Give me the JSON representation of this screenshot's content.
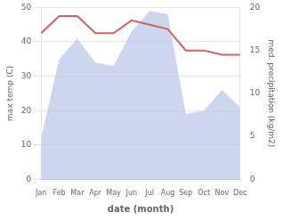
{
  "chart_data": {
    "type": "line",
    "categories": [
      "Jan",
      "Feb",
      "Mar",
      "Apr",
      "May",
      "Jun",
      "Jul",
      "Aug",
      "Sep",
      "Oct",
      "Nov",
      "Dec"
    ],
    "xlabel": "date (month)",
    "ylabel": "max temp (C)",
    "y2label": "med. precipitation (kg/m2)",
    "ylim": [
      0,
      50
    ],
    "yticks": [
      0,
      10,
      20,
      30,
      40,
      50
    ],
    "y2lim": [
      0,
      20
    ],
    "y2ticks": [
      0,
      5,
      10,
      15,
      20
    ],
    "grid": true,
    "series": [
      {
        "type": "area",
        "color": "#b8c4e8",
        "values": [
          12,
          35,
          41,
          34,
          33,
          43,
          49,
          48,
          19,
          20,
          26,
          21
        ]
      },
      {
        "type": "line",
        "color": "#d45f5f",
        "axis": "y2",
        "values": [
          17,
          19,
          19,
          17,
          17,
          18.5,
          18,
          17.5,
          15,
          15,
          14.5,
          14.5
        ]
      }
    ]
  }
}
